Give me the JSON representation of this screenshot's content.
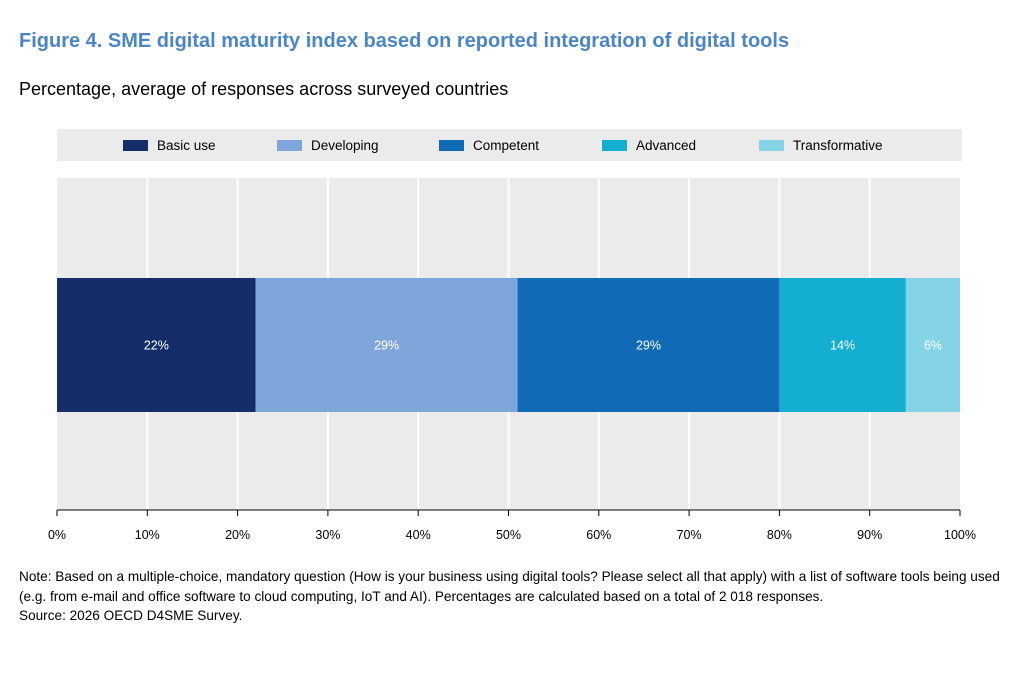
{
  "figure": {
    "title": "Figure 4. SME digital maturity index based on reported integration of digital tools",
    "subtitle": "Percentage, average of responses across surveyed countries"
  },
  "colors": {
    "title": "#4a86c6",
    "plot_background": "#ebebeb",
    "gridline": "#ffffff",
    "label_text": "#ffffff"
  },
  "chart_data": {
    "type": "bar",
    "orientation": "horizontal",
    "stacked": true,
    "categories": [
      ""
    ],
    "series": [
      {
        "name": "Basic use",
        "values": [
          22
        ],
        "label": "22%",
        "color": "#152d69"
      },
      {
        "name": "Developing",
        "values": [
          29
        ],
        "label": "29%",
        "color": "#7ea6da"
      },
      {
        "name": "Competent",
        "values": [
          29
        ],
        "label": "29%",
        "color": "#106ab6"
      },
      {
        "name": "Advanced",
        "values": [
          14
        ],
        "label": "14%",
        "color": "#13aed0"
      },
      {
        "name": "Transformative",
        "values": [
          6
        ],
        "label": "6%",
        "color": "#84d3e6"
      }
    ],
    "xlim": [
      0,
      100
    ],
    "xticks": [
      0,
      10,
      20,
      30,
      40,
      50,
      60,
      70,
      80,
      90,
      100
    ],
    "xtick_labels": [
      "0%",
      "10%",
      "20%",
      "30%",
      "40%",
      "50%",
      "60%",
      "70%",
      "80%",
      "90%",
      "100%"
    ],
    "grid": true,
    "legend_position": "top",
    "xlabel": "",
    "ylabel": ""
  },
  "notes": {
    "note": "Note: Based on a multiple-choice, mandatory question (How is your business using digital tools? Please select all that apply) with a list of software tools being used (e.g. from e-mail and office software to cloud computing, IoT and AI). Percentages are calculated based on a total of 2 018 responses.",
    "source": "Source: 2026 OECD D4SME Survey."
  }
}
